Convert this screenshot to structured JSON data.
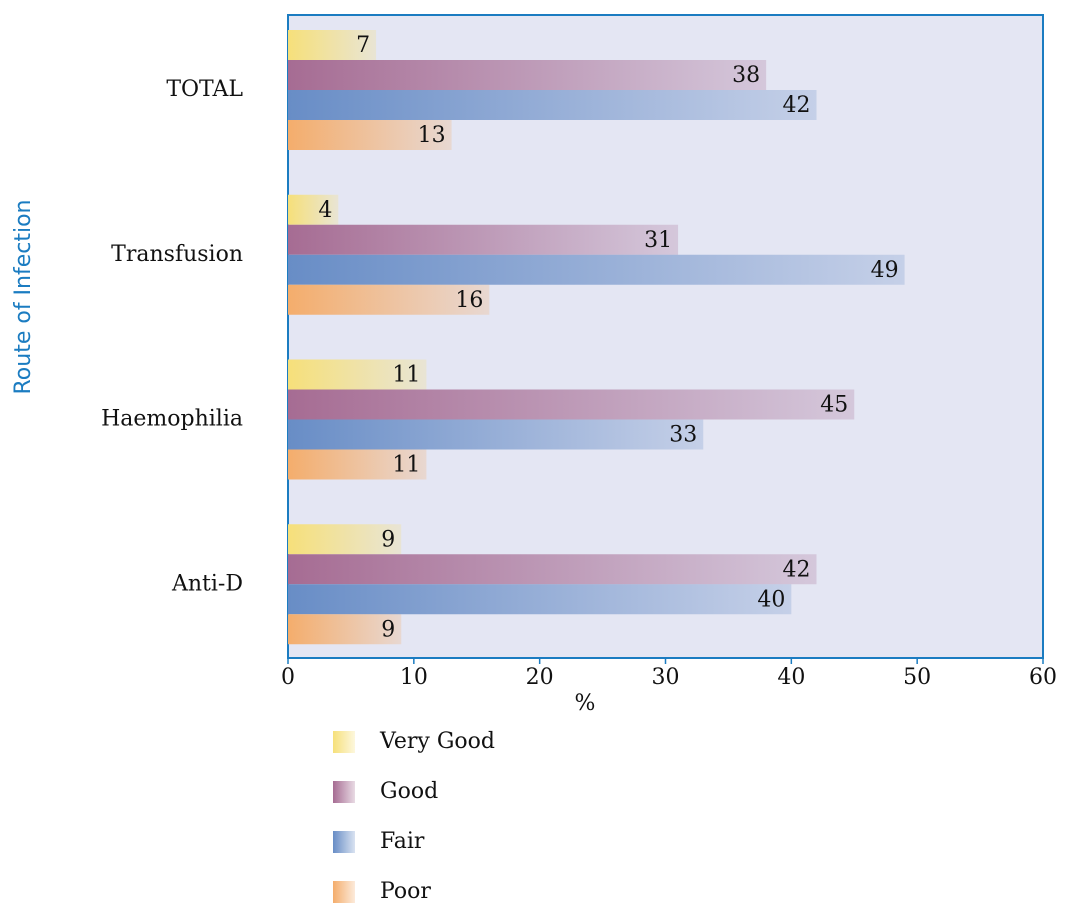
{
  "chart_data": {
    "type": "bar",
    "orientation": "horizontal",
    "y_label": "Route of Infection",
    "x_label": "%",
    "categories": [
      "TOTAL",
      "Transfusion",
      "Haemophilia",
      "Anti-D"
    ],
    "series": [
      {
        "name": "Very Good",
        "color": "#f6e07a",
        "values": [
          7,
          4,
          11,
          9
        ]
      },
      {
        "name": "Good",
        "color": "#a66c93",
        "values": [
          38,
          31,
          45,
          42
        ]
      },
      {
        "name": "Fair",
        "color": "#688dc6",
        "values": [
          42,
          49,
          33,
          40
        ]
      },
      {
        "name": "Poor",
        "color": "#f4ad6c",
        "values": [
          13,
          16,
          11,
          9
        ]
      }
    ],
    "xlim": [
      0,
      60
    ],
    "xticks": [
      0,
      10,
      20,
      30,
      40,
      50,
      60
    ]
  }
}
